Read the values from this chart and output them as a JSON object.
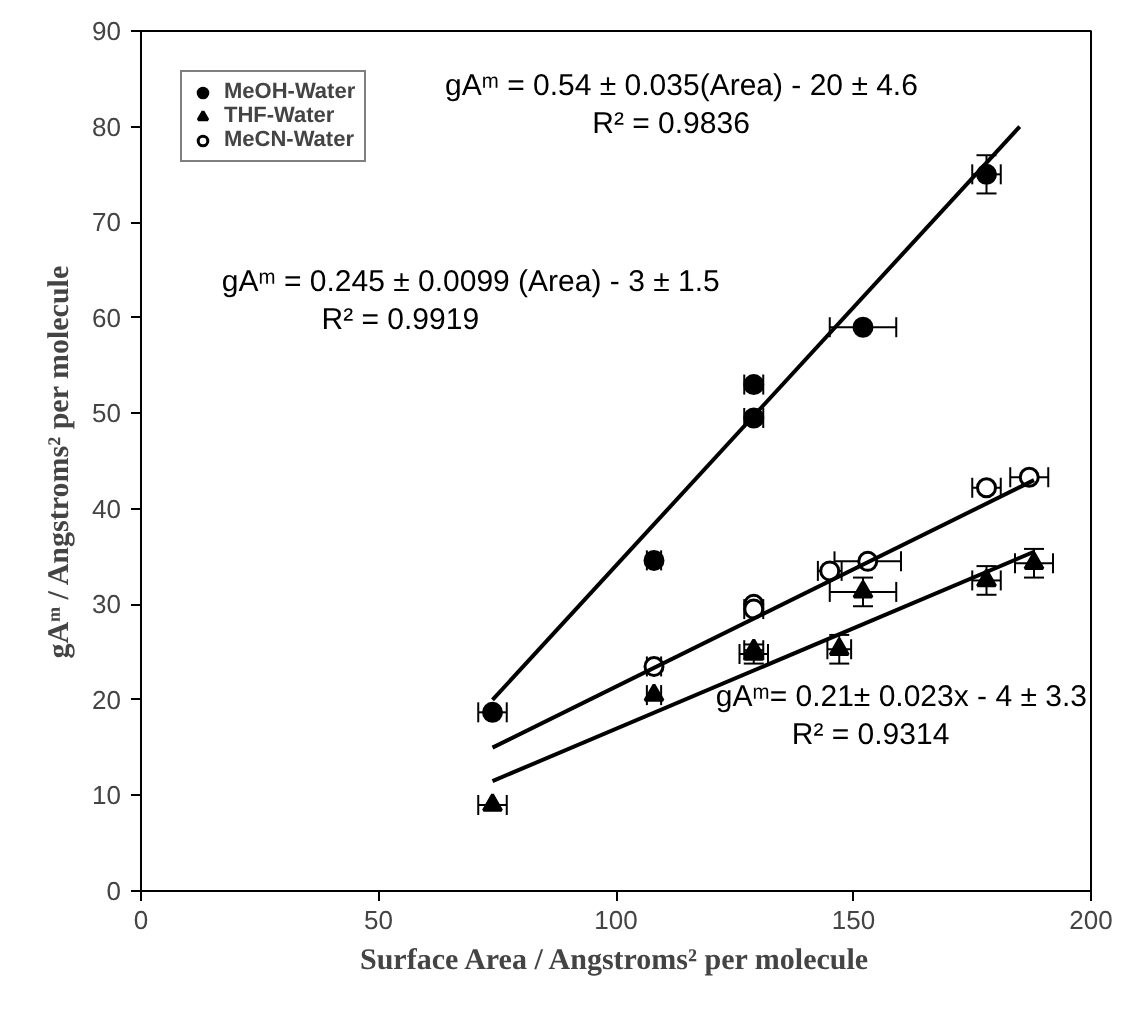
{
  "chart_data": {
    "type": "scatter",
    "xlabel": "Surface Area / Angstroms² per molecule",
    "ylabel": "gAᵐ / Angstroms² per molecule",
    "xlim": [
      0,
      200
    ],
    "xticks": [
      0,
      50,
      100,
      150,
      200
    ],
    "ylim": [
      0,
      90
    ],
    "yticks": [
      0,
      10,
      20,
      30,
      40,
      50,
      60,
      70,
      80,
      90
    ],
    "grid": false,
    "legend": "top left",
    "series": [
      {
        "name": "MeOH-Water",
        "color": "#000000",
        "marker": "circle",
        "x": [
          74,
          108,
          129,
          129,
          152,
          178
        ],
        "values": [
          18.7,
          34.6,
          49.5,
          53,
          59,
          75
        ],
        "xerrors": [
          3,
          1.5,
          2,
          2,
          7,
          3
        ],
        "errors": [
          null,
          null,
          null,
          null,
          null,
          2
        ]
      },
      {
        "name": "THF-Water",
        "color": "#000000",
        "marker": "triangle",
        "x": [
          74,
          108,
          129,
          129,
          147,
          152,
          178,
          188
        ],
        "values": [
          9,
          20.5,
          24.8,
          25.2,
          25.3,
          31.3,
          32.5,
          34.3
        ],
        "xerrors": [
          3,
          1.5,
          3,
          2,
          2.5,
          7,
          3,
          4
        ],
        "errors": [
          null,
          null,
          1,
          null,
          1.5,
          1.5,
          1.5,
          1.5
        ]
      },
      {
        "name": "MeCN-Water",
        "color": "#ffffff",
        "marker": "circle",
        "x": [
          108,
          129,
          129,
          145,
          153,
          178,
          187
        ],
        "values": [
          23.5,
          30,
          29.5,
          33.5,
          34.5,
          42.2,
          43.3
        ],
        "xerrors": [
          1.5,
          null,
          2,
          2.5,
          7,
          3,
          4
        ],
        "errors": [
          null,
          null,
          null,
          null,
          null,
          null,
          null
        ]
      },
      {
        "type": "line",
        "color": "#000000",
        "x": [
          74,
          185
        ],
        "values": [
          20,
          80
        ]
      },
      {
        "type": "line",
        "color": "#000000",
        "x": [
          74,
          188
        ],
        "values": [
          15,
          43
        ]
      },
      {
        "type": "line",
        "color": "#000000",
        "x": [
          74,
          188
        ],
        "values": [
          11.5,
          35.5
        ]
      }
    ],
    "annotations": [
      "gAᵐ = 0.54 ± 0.035(Area) - 20 ± 4.6",
      "R² = 0.9836",
      "gAᵐ = 0.245 ± 0.0099 (Area) - 3 ± 1.5",
      "R² = 0.9919",
      "gAᵐ= 0.21± 0.023x -  4 ± 3.3",
      "R² = 0.9314"
    ]
  }
}
